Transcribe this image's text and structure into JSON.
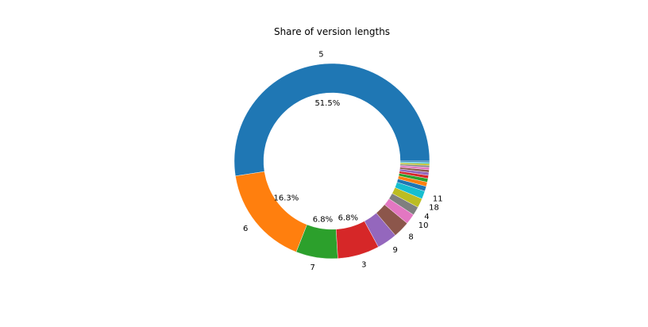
{
  "chart_data": {
    "type": "pie",
    "style": "donut",
    "title": "Share of version lengths",
    "slices": [
      {
        "label": "5",
        "value": 51.5,
        "pct_label": "51.5%",
        "color": "#1f77b4"
      },
      {
        "label": "6",
        "value": 16.3,
        "pct_label": "16.3%",
        "color": "#ff7f0e"
      },
      {
        "label": "7",
        "value": 6.8,
        "pct_label": "6.8%",
        "color": "#2ca02c"
      },
      {
        "label": "3",
        "value": 6.8,
        "pct_label": "6.8%",
        "color": "#d62728"
      },
      {
        "label": "9",
        "value": 3.3,
        "pct_label": "",
        "color": "#9467bd"
      },
      {
        "label": "8",
        "value": 2.7,
        "pct_label": "",
        "color": "#8c564b"
      },
      {
        "label": "10",
        "value": 1.7,
        "pct_label": "",
        "color": "#e377c2"
      },
      {
        "label": "4",
        "value": 1.4,
        "pct_label": "",
        "color": "#7f7f7f"
      },
      {
        "label": "18",
        "value": 1.5,
        "pct_label": "",
        "color": "#bcbd22"
      },
      {
        "label": "11",
        "value": 1.3,
        "pct_label": "",
        "color": "#17becf"
      },
      {
        "label": "",
        "value": 0.8,
        "pct_label": "",
        "color": "#1f77b4"
      },
      {
        "label": "",
        "value": 0.7,
        "pct_label": "",
        "color": "#ff7f0e"
      },
      {
        "label": "",
        "value": 0.6,
        "pct_label": "",
        "color": "#2ca02c"
      },
      {
        "label": "",
        "value": 0.5,
        "pct_label": "",
        "color": "#d62728"
      },
      {
        "label": "",
        "value": 0.5,
        "pct_label": "",
        "color": "#9467bd"
      },
      {
        "label": "",
        "value": 0.4,
        "pct_label": "",
        "color": "#8c564b"
      },
      {
        "label": "",
        "value": 0.4,
        "pct_label": "",
        "color": "#e377c2"
      },
      {
        "label": "",
        "value": 0.3,
        "pct_label": "",
        "color": "#7f7f7f"
      },
      {
        "label": "",
        "value": 0.3,
        "pct_label": "",
        "color": "#bcbd22"
      },
      {
        "label": "",
        "value": 0.2,
        "pct_label": "",
        "color": "#17becf"
      },
      {
        "label": "",
        "value": 0.2,
        "pct_label": "",
        "color": "#1f77b4"
      }
    ]
  }
}
